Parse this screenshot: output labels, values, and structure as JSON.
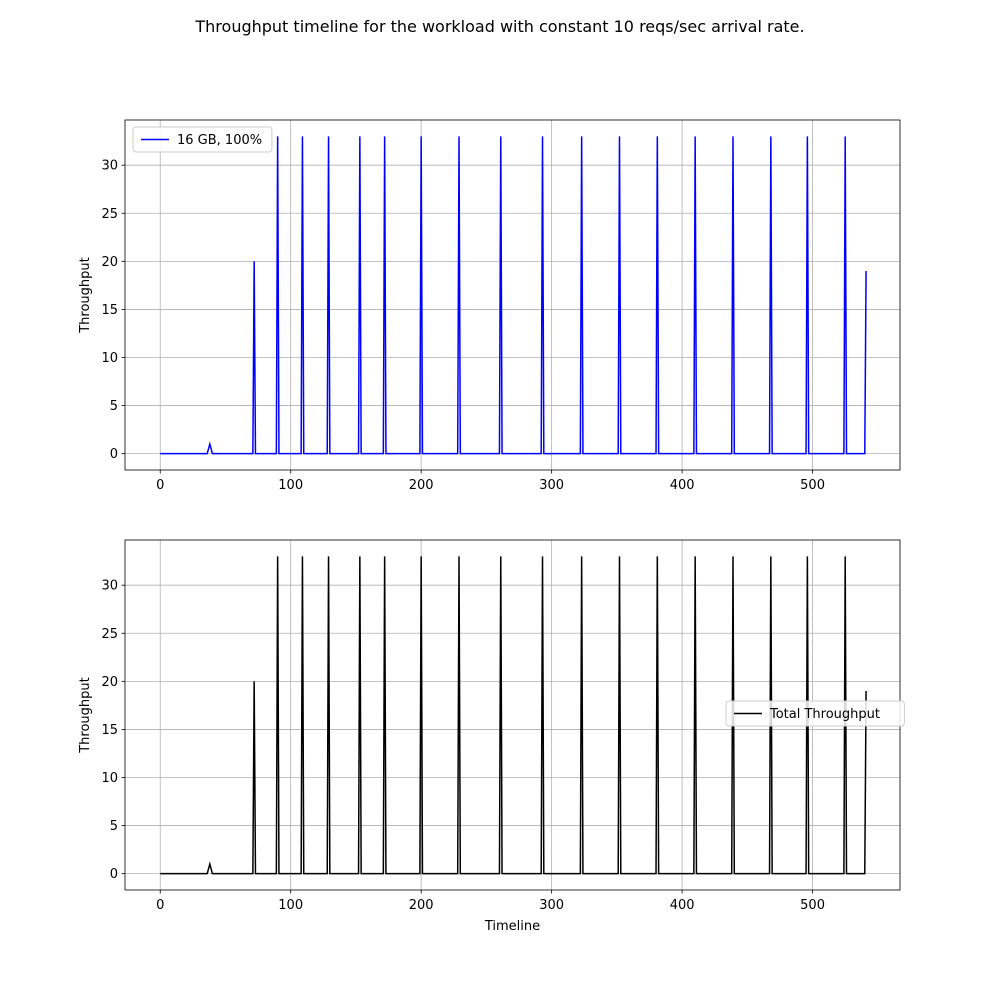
{
  "figure": {
    "title": "Throughput timeline for the workload with constant 10 reqs/sec arrival rate."
  },
  "chart_data": [
    {
      "type": "line",
      "title": "",
      "xlabel": "",
      "ylabel": "Throughput",
      "xlim": [
        -27,
        567
      ],
      "ylim": [
        -1.7,
        34.7
      ],
      "xticks": [
        0,
        100,
        200,
        300,
        400,
        500
      ],
      "yticks": [
        0,
        5,
        10,
        15,
        20,
        25,
        30
      ],
      "grid": true,
      "legend": "top-left",
      "series": [
        {
          "name": "16 GB, 100%",
          "color": "#0000ff",
          "x": [
            0,
            36,
            38,
            40,
            71,
            72,
            73,
            89,
            90,
            91,
            108,
            109,
            110,
            128,
            129,
            130,
            152,
            153,
            154,
            171,
            172,
            173,
            199,
            200,
            201,
            228,
            229,
            230,
            260,
            261,
            262,
            292,
            293,
            294,
            322,
            323,
            324,
            351,
            352,
            353,
            380,
            381,
            382,
            409,
            410,
            411,
            438,
            439,
            440,
            467,
            468,
            469,
            495,
            496,
            497,
            524,
            525,
            526,
            540,
            541
          ],
          "y": [
            0,
            0,
            1,
            0,
            0,
            20,
            0,
            0,
            33,
            0,
            0,
            33,
            0,
            0,
            33,
            0,
            0,
            33,
            0,
            0,
            33,
            0,
            0,
            33,
            0,
            0,
            33,
            0,
            0,
            33,
            0,
            0,
            33,
            0,
            0,
            33,
            0,
            0,
            33,
            0,
            0,
            33,
            0,
            0,
            33,
            0,
            0,
            33,
            0,
            0,
            33,
            0,
            0,
            33,
            0,
            0,
            33,
            0,
            0,
            19
          ]
        }
      ]
    },
    {
      "type": "line",
      "title": "",
      "xlabel": "Timeline",
      "ylabel": "Throughput",
      "xlim": [
        -27,
        567
      ],
      "ylim": [
        -1.7,
        34.7
      ],
      "xticks": [
        0,
        100,
        200,
        300,
        400,
        500
      ],
      "yticks": [
        0,
        5,
        10,
        15,
        20,
        25,
        30
      ],
      "grid": true,
      "legend": "center-right",
      "series": [
        {
          "name": "Total Throughput",
          "color": "#000000",
          "x": [
            0,
            36,
            38,
            40,
            71,
            72,
            73,
            89,
            90,
            91,
            108,
            109,
            110,
            128,
            129,
            130,
            152,
            153,
            154,
            171,
            172,
            173,
            199,
            200,
            201,
            228,
            229,
            230,
            260,
            261,
            262,
            292,
            293,
            294,
            322,
            323,
            324,
            351,
            352,
            353,
            380,
            381,
            382,
            409,
            410,
            411,
            438,
            439,
            440,
            467,
            468,
            469,
            495,
            496,
            497,
            524,
            525,
            526,
            540,
            541
          ],
          "y": [
            0,
            0,
            1,
            0,
            0,
            20,
            0,
            0,
            33,
            0,
            0,
            33,
            0,
            0,
            33,
            0,
            0,
            33,
            0,
            0,
            33,
            0,
            0,
            33,
            0,
            0,
            33,
            0,
            0,
            33,
            0,
            0,
            33,
            0,
            0,
            33,
            0,
            0,
            33,
            0,
            0,
            33,
            0,
            0,
            33,
            0,
            0,
            33,
            0,
            0,
            33,
            0,
            0,
            33,
            0,
            0,
            33,
            0,
            0,
            19
          ]
        }
      ]
    }
  ]
}
